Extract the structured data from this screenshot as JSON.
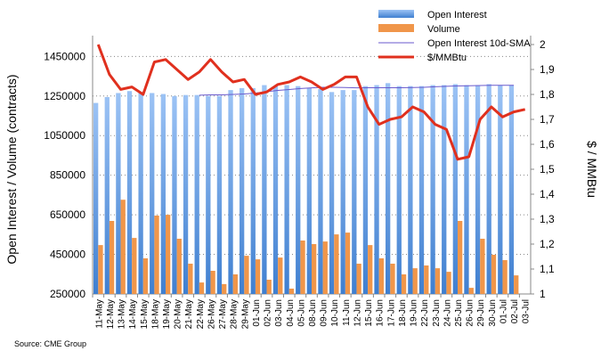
{
  "chart_data": {
    "type": "bar",
    "title": "",
    "source": "Source: CME Group",
    "ylabel": "Open Interest / Volume (contracts)",
    "y2label": "$ / MMBtu",
    "ylim": [
      250000,
      1510000
    ],
    "y2lim": [
      1,
      2
    ],
    "yticks": [
      "250000",
      "450000",
      "650000",
      "850000",
      "1050000",
      "1250000",
      "1450000"
    ],
    "y2ticks": [
      "1",
      "1,1",
      "1,2",
      "1,3",
      "1,4",
      "1,5",
      "1,6",
      "1,7",
      "1,8",
      "1,9",
      "2"
    ],
    "categories": [
      "11-May",
      "12-May",
      "13-May",
      "14-May",
      "15-May",
      "18-May",
      "19-May",
      "20-May",
      "21-May",
      "22-May",
      "26-May",
      "27-May",
      "28-May",
      "29-May",
      "01-Jun",
      "02-Jun",
      "03-Jun",
      "04-Jun",
      "05-Jun",
      "08-Jun",
      "09-Jun",
      "10-Jun",
      "11-Jun",
      "12-Jun",
      "15-Jun",
      "16-Jun",
      "17-Jun",
      "18-Jun",
      "19-Jun",
      "22-Jun",
      "23-Jun",
      "24-Jun",
      "25-Jun",
      "26-Jun",
      "29-Jun",
      "30-Jun",
      "01-Jul",
      "02-Jul",
      "03-Jul"
    ],
    "series": [
      {
        "name": "Open Interest",
        "type": "bar",
        "color": "#5b9bd5",
        "values": [
          1215000,
          1245000,
          1265000,
          1275000,
          1270000,
          1265000,
          1260000,
          1250000,
          1255000,
          1255000,
          1250000,
          1250000,
          1280000,
          1290000,
          1290000,
          1305000,
          1300000,
          1305000,
          1300000,
          1290000,
          1285000,
          1270000,
          1280000,
          1280000,
          1300000,
          1305000,
          1315000,
          1300000,
          1300000,
          1300000,
          1305000,
          1305000,
          1310000,
          1305000,
          1305000,
          1310000,
          1305000,
          1305000,
          null
        ]
      },
      {
        "name": "Volume",
        "type": "bar",
        "color": "#f0964a",
        "values": [
          497000,
          619000,
          726000,
          533000,
          430000,
          646000,
          650000,
          529000,
          403000,
          308000,
          367000,
          300000,
          349000,
          443000,
          425000,
          322000,
          434000,
          277000,
          520000,
          502000,
          515000,
          551000,
          560000,
          403000,
          497000,
          430000,
          403000,
          349000,
          380000,
          394000,
          380000,
          362000,
          619000,
          281000,
          529000,
          448000,
          421000,
          344000,
          null
        ]
      },
      {
        "name": "Open Interest 10d-SMA",
        "type": "line",
        "color": "#6a5acd",
        "values": [
          null,
          null,
          null,
          null,
          null,
          null,
          null,
          null,
          null,
          1254000,
          1256000,
          1256000,
          1258000,
          1260000,
          1265000,
          1272000,
          1278000,
          1283000,
          1288000,
          1291000,
          1294000,
          1294000,
          1293000,
          1291000,
          1292000,
          1292000,
          1292000,
          1292000,
          1293000,
          1294000,
          1297000,
          1299000,
          1301000,
          1302000,
          1303000,
          1304000,
          1304000,
          1304000,
          null
        ]
      },
      {
        "name": "$/MMBtu",
        "type": "line",
        "axis": "right",
        "color": "#e0301e",
        "values": [
          2.0,
          1.88,
          1.82,
          1.83,
          1.8,
          1.93,
          1.94,
          1.9,
          1.86,
          1.89,
          1.94,
          1.89,
          1.85,
          1.86,
          1.8,
          1.81,
          1.84,
          1.85,
          1.87,
          1.85,
          1.82,
          1.84,
          1.87,
          1.87,
          1.75,
          1.68,
          1.7,
          1.71,
          1.75,
          1.73,
          1.68,
          1.66,
          1.54,
          1.55,
          1.7,
          1.75,
          1.71,
          1.73,
          1.74
        ]
      }
    ],
    "legend": "top-right",
    "grid": true
  }
}
